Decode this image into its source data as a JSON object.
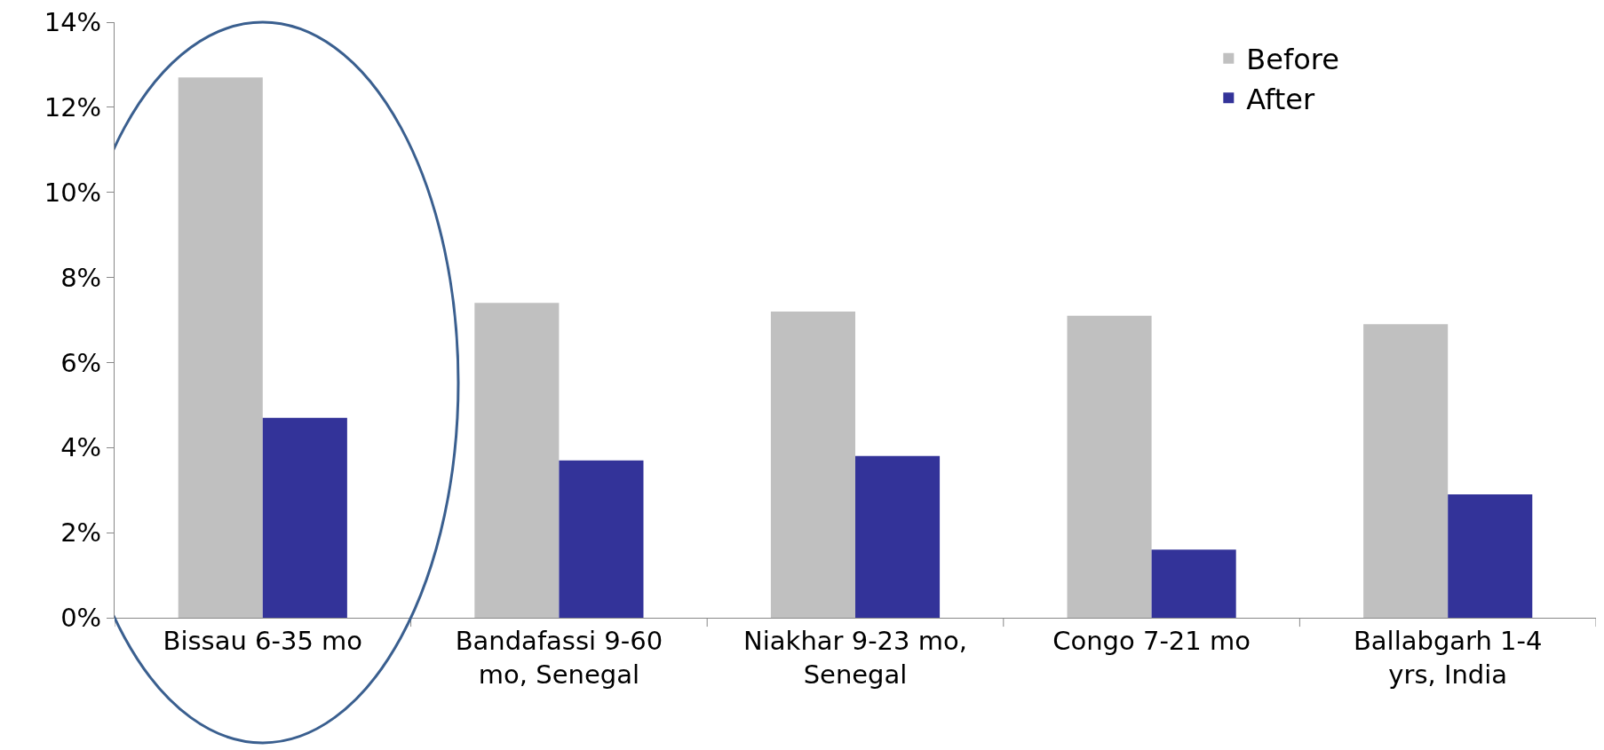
{
  "chart_data": {
    "type": "bar",
    "categories": [
      "Bissau 6-35 mo",
      "Bandafassi 9-60 mo, Senegal",
      "Niakhar 9-23 mo, Senegal",
      "Congo 7-21 mo",
      "Ballabgarh 1-4 yrs, India"
    ],
    "series": [
      {
        "name": "Before",
        "color": "#c0c0c0",
        "values": [
          12.7,
          7.4,
          7.2,
          7.1,
          6.9
        ]
      },
      {
        "name": "After",
        "color": "#333399",
        "values": [
          4.7,
          3.7,
          3.8,
          1.6,
          2.9
        ]
      }
    ],
    "ylim": [
      0,
      14
    ],
    "yticks": [
      {
        "value": 0,
        "label": "0%"
      },
      {
        "value": 2,
        "label": "2%"
      },
      {
        "value": 4,
        "label": "4%"
      },
      {
        "value": 6,
        "label": "6%"
      },
      {
        "value": 8,
        "label": "8%"
      },
      {
        "value": 10,
        "label": "10%"
      },
      {
        "value": 12,
        "label": "12%"
      },
      {
        "value": 14,
        "label": "14%"
      }
    ],
    "legend": "top right"
  }
}
